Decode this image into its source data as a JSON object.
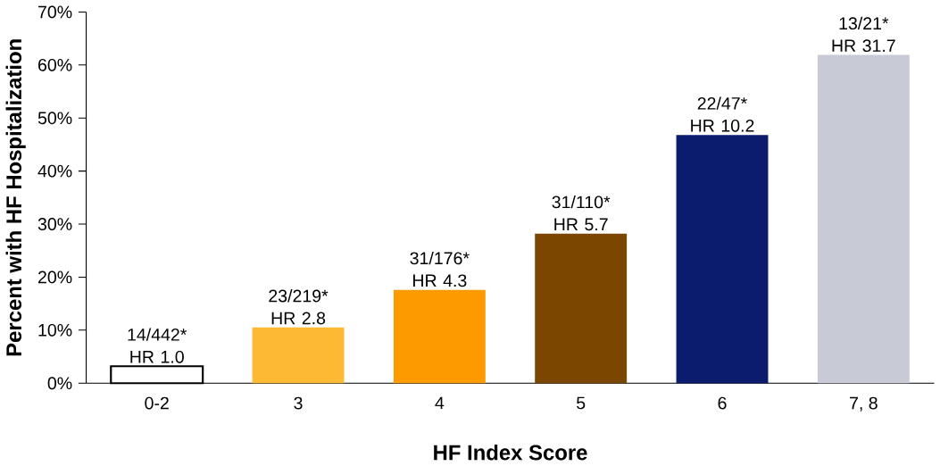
{
  "chart_data": {
    "type": "bar",
    "xlabel": "HF Index Score",
    "ylabel": "Percent with HF Hospitalization",
    "categories": [
      "0-2",
      "3",
      "4",
      "5",
      "6",
      "7, 8"
    ],
    "values": [
      3.2,
      10.5,
      17.6,
      28.2,
      46.8,
      61.9
    ],
    "colors": [
      "#ffffff",
      "#fdb933",
      "#fd9a00",
      "#7a4600",
      "#0b1c6e",
      "#c8cad6"
    ],
    "value_labels": [
      "14/442* HR 1.0",
      "23/219* HR 2.8",
      "31/176* HR 4.3",
      "31/110* HR 5.7",
      "22/47* HR 10.2",
      "13/21* HR 31.7"
    ],
    "ylim": [
      0,
      70
    ],
    "yticks": [
      {
        "value": 0,
        "label": "0%"
      },
      {
        "value": 10,
        "label": "10%"
      },
      {
        "value": 20,
        "label": "20%"
      },
      {
        "value": 30,
        "label": "30%"
      },
      {
        "value": 40,
        "label": "40%"
      },
      {
        "value": 50,
        "label": "50%"
      },
      {
        "value": 60,
        "label": "60%"
      },
      {
        "value": 70,
        "label": "70%"
      }
    ],
    "grid": false
  }
}
